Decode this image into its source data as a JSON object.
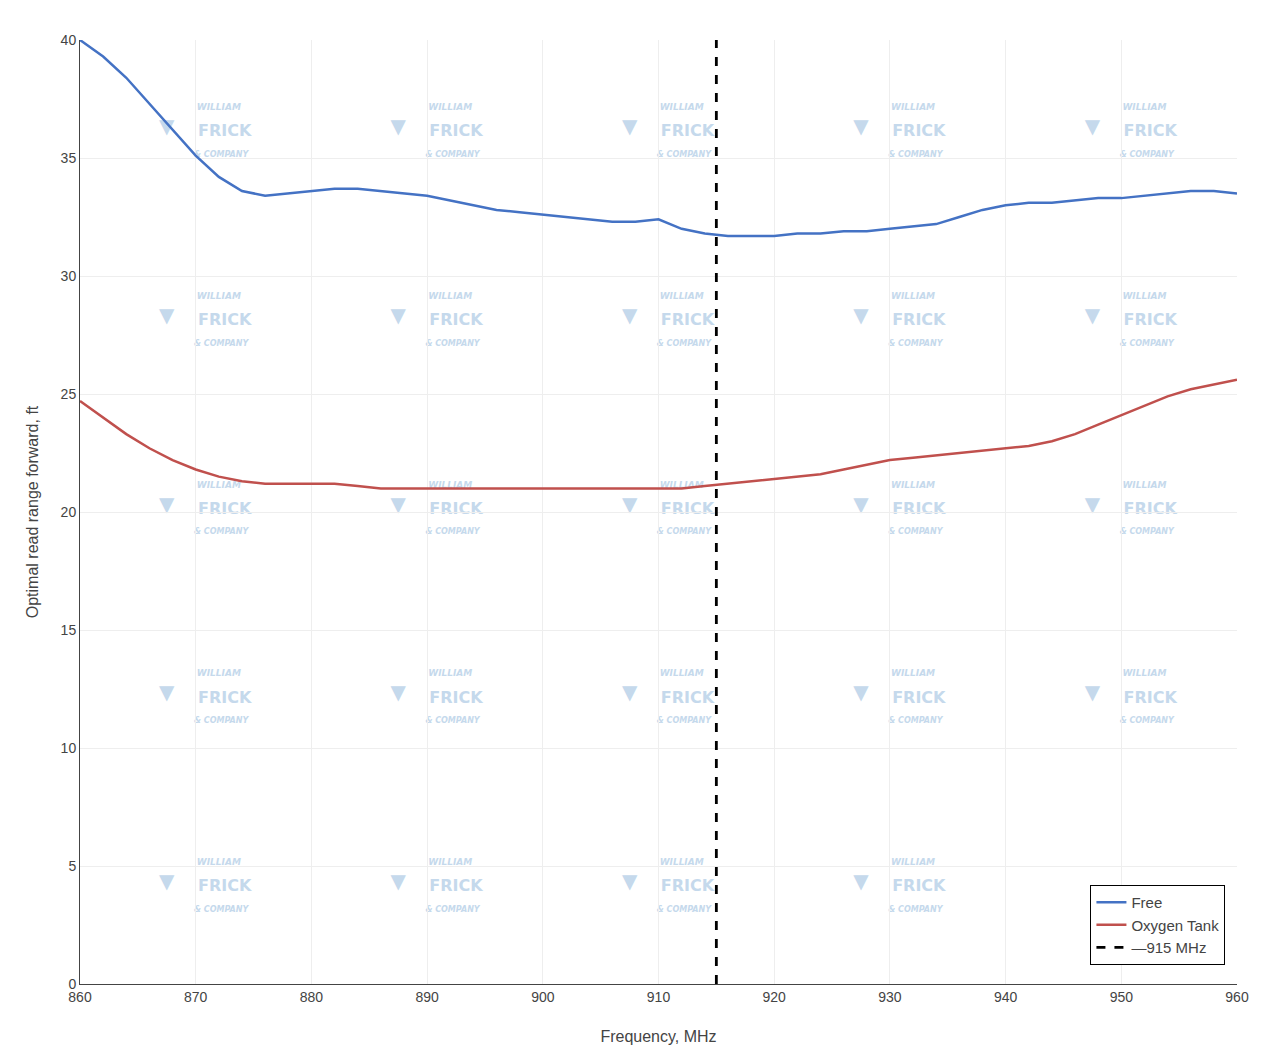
{
  "chart_data": {
    "type": "line",
    "x_label": "Frequency, MHz",
    "y_label": "Optimal read range forward, ft",
    "series": [
      {
        "name": "Free",
        "color": "#4472C4",
        "x": [
          860,
          862,
          864,
          866,
          868,
          870,
          872,
          874,
          876,
          878,
          880,
          882,
          884,
          886,
          888,
          890,
          892,
          894,
          896,
          898,
          900,
          902,
          904,
          906,
          908,
          910,
          912,
          914,
          916,
          918,
          920,
          922,
          924,
          926,
          928,
          930,
          932,
          934,
          936,
          938,
          940,
          942,
          944,
          946,
          948,
          950,
          952,
          954,
          956,
          958,
          960
        ],
        "values": [
          40.0,
          39.3,
          38.4,
          37.3,
          36.2,
          35.1,
          34.2,
          33.6,
          33.4,
          33.5,
          33.6,
          33.7,
          33.7,
          33.6,
          33.5,
          33.4,
          33.2,
          33.0,
          32.8,
          32.7,
          32.6,
          32.5,
          32.4,
          32.3,
          32.3,
          32.4,
          32.0,
          31.8,
          31.7,
          31.7,
          31.7,
          31.8,
          31.8,
          31.9,
          31.9,
          32.0,
          32.1,
          32.2,
          32.5,
          32.8,
          33.0,
          33.1,
          33.1,
          33.2,
          33.3,
          33.3,
          33.4,
          33.5,
          33.6,
          33.6,
          33.5
        ]
      },
      {
        "name": "Oxygen Tank",
        "color": "#C0504D",
        "x": [
          860,
          862,
          864,
          866,
          868,
          870,
          872,
          874,
          876,
          878,
          880,
          882,
          884,
          886,
          888,
          890,
          892,
          894,
          896,
          898,
          900,
          902,
          904,
          906,
          908,
          910,
          912,
          914,
          916,
          918,
          920,
          922,
          924,
          926,
          928,
          930,
          932,
          934,
          936,
          938,
          940,
          942,
          944,
          946,
          948,
          950,
          952,
          954,
          956,
          958,
          960
        ],
        "values": [
          24.7,
          24.0,
          23.3,
          22.7,
          22.2,
          21.8,
          21.5,
          21.3,
          21.2,
          21.2,
          21.2,
          21.2,
          21.1,
          21.0,
          21.0,
          21.0,
          21.0,
          21.0,
          21.0,
          21.0,
          21.0,
          21.0,
          21.0,
          21.0,
          21.0,
          21.0,
          21.0,
          21.1,
          21.2,
          21.3,
          21.4,
          21.5,
          21.6,
          21.8,
          22.0,
          22.2,
          22.3,
          22.4,
          22.5,
          22.6,
          22.7,
          22.8,
          23.0,
          23.3,
          23.7,
          24.1,
          24.5,
          24.9,
          25.2,
          25.4,
          25.6
        ]
      },
      {
        "name": "—915 MHz",
        "type": "vline",
        "x": 915,
        "color": "#000000",
        "line_style": "dashed"
      }
    ],
    "xlim": [
      860,
      960
    ],
    "ylim": [
      0,
      40
    ],
    "xticks": [
      860,
      870,
      880,
      890,
      900,
      910,
      920,
      930,
      940,
      950,
      960
    ],
    "yticks": [
      0,
      5,
      10,
      15,
      20,
      25,
      30,
      35,
      40
    ],
    "grid": true,
    "legend": "lower right",
    "annotations": [
      {
        "text": "▼",
        "color": "#C5D9EC"
      },
      {
        "text": "WILLIAM",
        "color": "#C5D9EC"
      },
      {
        "text": "FRICK",
        "color": "#C5D9EC"
      },
      {
        "text": "& COMPANY",
        "color": "#C5D9EC"
      }
    ]
  }
}
